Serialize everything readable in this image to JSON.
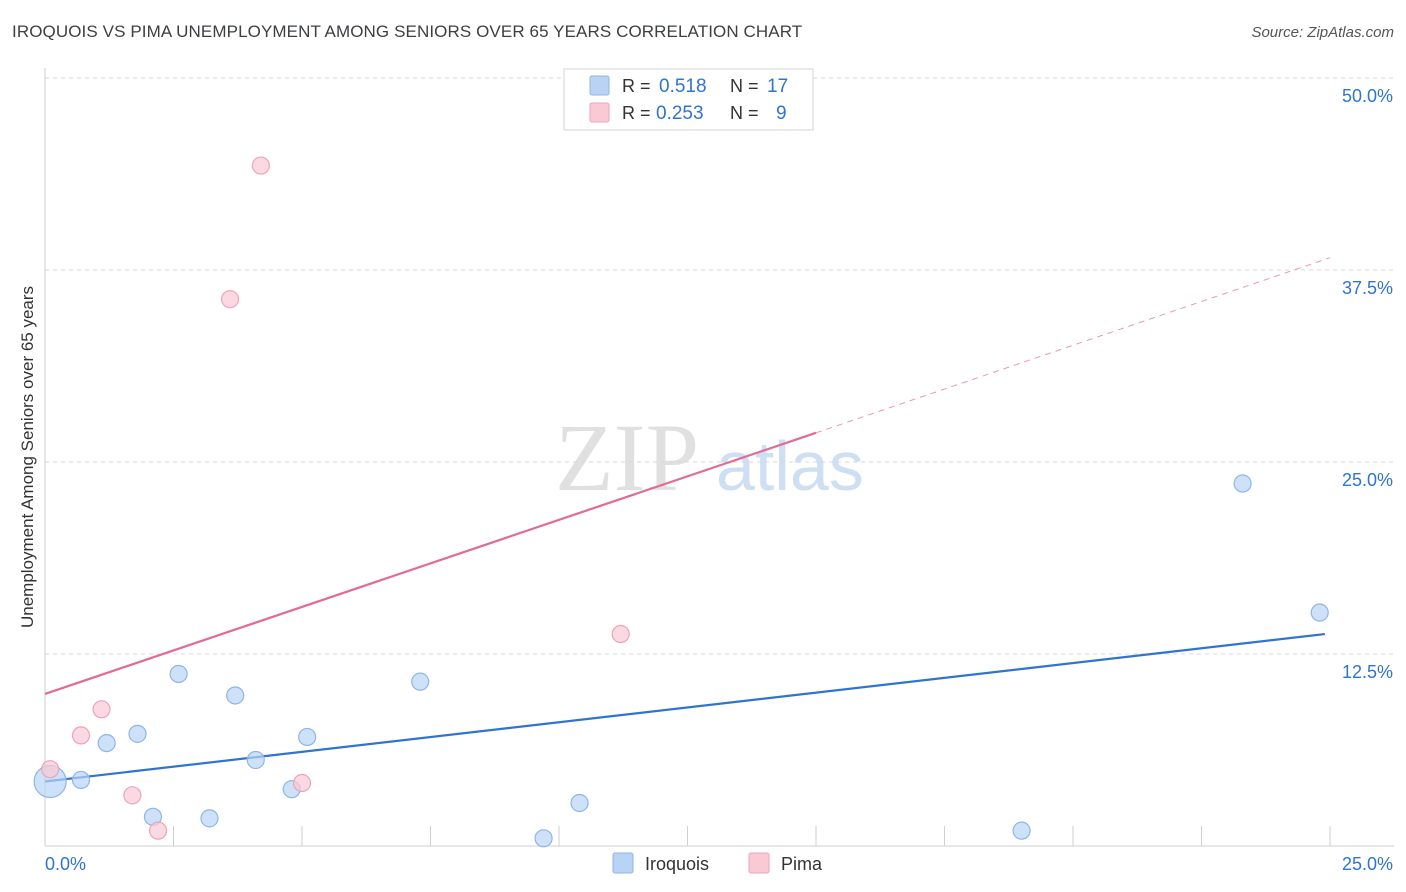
{
  "header": {
    "title": "IROQUOIS VS PIMA UNEMPLOYMENT AMONG SENIORS OVER 65 YEARS CORRELATION CHART",
    "source": "Source: ZipAtlas.com"
  },
  "watermark": {
    "zip": "ZIP",
    "atlas": "atlas"
  },
  "legend_box": {
    "rows": [
      {
        "r_label": "R =",
        "r_value": "0.518",
        "n_label": "N =",
        "n_value": "17",
        "color": "#b8d4f5",
        "stroke": "#8fb5e6"
      },
      {
        "r_label": "R =",
        "r_value": "0.253",
        "n_label": "N =",
        "n_value": "9",
        "color": "#f9c9d6",
        "stroke": "#eea3b9"
      }
    ]
  },
  "bottom_legend": [
    {
      "label": "Iroquois",
      "color": "#b8d4f5",
      "stroke": "#8fb5e6"
    },
    {
      "label": "Pima",
      "color": "#f9c9d6",
      "stroke": "#eea3b9"
    }
  ],
  "chart_data": {
    "type": "scatter",
    "title": "IROQUOIS VS PIMA UNEMPLOYMENT AMONG SENIORS OVER 65 YEARS CORRELATION CHART",
    "xlabel": "",
    "ylabel": "Unemployment Among Seniors over 65 years",
    "xlim": [
      0,
      25
    ],
    "ylim": [
      0,
      50
    ],
    "x_tick_labels": [
      {
        "value": 0,
        "label": "0.0%"
      },
      {
        "value": 25,
        "label": "25.0%"
      }
    ],
    "y_tick_labels": [
      {
        "value": 12.5,
        "label": "12.5%"
      },
      {
        "value": 25,
        "label": "25.0%"
      },
      {
        "value": 37.5,
        "label": "37.5%"
      },
      {
        "value": 50,
        "label": "50.0%"
      }
    ],
    "grid": true,
    "series": [
      {
        "name": "Iroquois",
        "color": "#b8d4f5",
        "stroke": "#8fb5e6",
        "line_color": "#2f74d0",
        "points": [
          {
            "x": 0.1,
            "y": 4.2,
            "big": true
          },
          {
            "x": 0.7,
            "y": 4.3
          },
          {
            "x": 1.2,
            "y": 6.7
          },
          {
            "x": 1.8,
            "y": 7.3
          },
          {
            "x": 2.1,
            "y": 1.9
          },
          {
            "x": 2.6,
            "y": 11.2
          },
          {
            "x": 3.2,
            "y": 1.8
          },
          {
            "x": 3.7,
            "y": 9.8
          },
          {
            "x": 4.1,
            "y": 5.6
          },
          {
            "x": 4.8,
            "y": 3.7
          },
          {
            "x": 5.1,
            "y": 7.1
          },
          {
            "x": 7.3,
            "y": 10.7
          },
          {
            "x": 9.7,
            "y": 0.5
          },
          {
            "x": 10.4,
            "y": 2.8
          },
          {
            "x": 19.0,
            "y": 1.0
          },
          {
            "x": 23.3,
            "y": 23.6
          },
          {
            "x": 24.8,
            "y": 15.2
          }
        ],
        "trend": {
          "x0": 0,
          "y0": 4.2,
          "x1": 24.9,
          "y1": 13.8,
          "dash_to": null
        }
      },
      {
        "name": "Pima",
        "color": "#f9c9d6",
        "stroke": "#eea3b9",
        "line_color": "#e36a93",
        "points": [
          {
            "x": 0.1,
            "y": 5.0
          },
          {
            "x": 0.7,
            "y": 7.2
          },
          {
            "x": 1.1,
            "y": 8.9
          },
          {
            "x": 1.7,
            "y": 3.3
          },
          {
            "x": 2.2,
            "y": 1.0
          },
          {
            "x": 3.6,
            "y": 35.6
          },
          {
            "x": 4.2,
            "y": 44.3
          },
          {
            "x": 5.0,
            "y": 4.1
          },
          {
            "x": 11.2,
            "y": 13.8
          }
        ],
        "trend": {
          "x0": 0,
          "y0": 9.9,
          "x1": 15.0,
          "y1": 26.9,
          "dash_to": {
            "x": 25.0,
            "y": 38.3
          }
        }
      }
    ]
  }
}
